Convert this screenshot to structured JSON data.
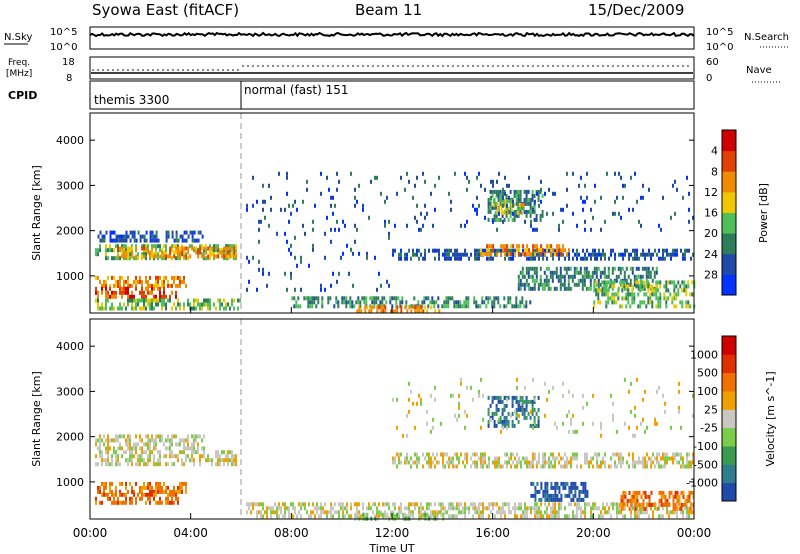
{
  "header": {
    "title": "Syowa East (fitACF)",
    "beam": "Beam 11",
    "date": "15/Dec/2009"
  },
  "status_panels": {
    "nsky": {
      "label": "N.Sky",
      "ticks_left": [
        "10^5",
        "10^0"
      ],
      "ticks_right": [
        "10^5",
        "10^0"
      ],
      "right_label": "N.Search"
    },
    "freq": {
      "label_line1": "Freq.",
      "label_line2": "[MHz]",
      "ticks_left": [
        "18",
        "8"
      ],
      "ticks_right": [
        "60",
        "0"
      ],
      "right_label": "Nave"
    },
    "cpid": {
      "label": "CPID",
      "segments": [
        {
          "name": "themis 3300",
          "start": 0,
          "end": 6
        },
        {
          "name": "normal (fast) 151",
          "start": 6,
          "end": 24
        }
      ]
    }
  },
  "chart_data": [
    {
      "type": "heatmap",
      "name": "power-panel",
      "ylabel": "Slant Range [km]",
      "xlabel": "Time UT",
      "ylim": [
        180,
        4600
      ],
      "xlim": [
        0,
        24
      ],
      "yticks": [
        "1000",
        "2000",
        "3000",
        "4000"
      ],
      "colorbar": {
        "label": "Power [dB]",
        "ticks": [
          "4",
          "8",
          "12",
          "16",
          "20",
          "24",
          "28"
        ],
        "colors": [
          "#0033ff",
          "#1f4aa8",
          "#2e7d5a",
          "#4fbf5a",
          "#f0c800",
          "#f08a00",
          "#e04000",
          "#d00000"
        ]
      },
      "regions": [
        {
          "t0": 0.2,
          "t1": 5.8,
          "r0": 1400,
          "r1": 1700,
          "level": 3
        },
        {
          "t0": 0.3,
          "t1": 4.5,
          "r0": 1750,
          "r1": 2000,
          "level": 1
        },
        {
          "t0": 0.2,
          "t1": 3.8,
          "r0": 800,
          "r1": 1000,
          "level": 5
        },
        {
          "t0": 0.2,
          "t1": 3.5,
          "r0": 560,
          "r1": 760,
          "level": 6
        },
        {
          "t0": 0.2,
          "t1": 6.0,
          "r0": 300,
          "r1": 500,
          "level": 3
        },
        {
          "t0": 1.0,
          "t1": 5.8,
          "r0": 1450,
          "r1": 1650,
          "level": 5
        },
        {
          "t0": 8.0,
          "t1": 17.5,
          "r0": 300,
          "r1": 550,
          "level": 2
        },
        {
          "t0": 10.5,
          "t1": 14.0,
          "r0": 200,
          "r1": 350,
          "level": 5
        },
        {
          "t0": 12.0,
          "t1": 24.0,
          "r0": 1350,
          "r1": 1600,
          "level": 1
        },
        {
          "t0": 15.5,
          "t1": 19.0,
          "r0": 1500,
          "r1": 1700,
          "level": 5
        },
        {
          "t0": 15.8,
          "t1": 18.0,
          "r0": 2200,
          "r1": 2900,
          "level": 2
        },
        {
          "t0": 16.0,
          "t1": 17.2,
          "r0": 2400,
          "r1": 2700,
          "level": 4
        },
        {
          "t0": 17.0,
          "t1": 22.5,
          "r0": 700,
          "r1": 1200,
          "level": 2
        },
        {
          "t0": 20.0,
          "t1": 24.0,
          "r0": 300,
          "r1": 900,
          "level": 3
        },
        {
          "t0": 6.2,
          "t1": 12.0,
          "r0": 700,
          "r1": 3300,
          "level": 1
        },
        {
          "t0": 12.0,
          "t1": 24.0,
          "r0": 2000,
          "r1": 3300,
          "level": 1
        }
      ]
    },
    {
      "type": "heatmap",
      "name": "velocity-panel",
      "ylabel": "Slant Range [km]",
      "xlabel": "Time UT",
      "ylim": [
        180,
        4600
      ],
      "xlim": [
        0,
        24
      ],
      "yticks": [
        "1000",
        "2000",
        "3000",
        "4000"
      ],
      "colorbar": {
        "label": "Velocity [m s^-1]",
        "ticks": [
          "1000",
          "500",
          "100",
          "25",
          "-25",
          "-100",
          "-500",
          "-1000"
        ],
        "colors": [
          "#1f4aa8",
          "#2e7d8a",
          "#3a9a50",
          "#7acc4a",
          "#c8c8c0",
          "#f0a000",
          "#f07000",
          "#e03000",
          "#d00000"
        ]
      },
      "regions": [
        {
          "t0": 0.2,
          "t1": 5.8,
          "r0": 1400,
          "r1": 1700,
          "level": 4
        },
        {
          "t0": 0.2,
          "t1": 3.8,
          "r0": 800,
          "r1": 1000,
          "level": 6
        },
        {
          "t0": 0.2,
          "t1": 3.5,
          "r0": 560,
          "r1": 760,
          "level": 6
        },
        {
          "t0": 0.2,
          "t1": 4.5,
          "r0": 1750,
          "r1": 2050,
          "level": 4
        },
        {
          "t0": 6.2,
          "t1": 24.0,
          "r0": 200,
          "r1": 550,
          "level": 4
        },
        {
          "t0": 10.5,
          "t1": 14.0,
          "r0": 200,
          "r1": 320,
          "level": 3
        },
        {
          "t0": 12.0,
          "t1": 24.0,
          "r0": 1350,
          "r1": 1650,
          "level": 4
        },
        {
          "t0": 15.8,
          "t1": 17.8,
          "r0": 2200,
          "r1": 2900,
          "level": 1
        },
        {
          "t0": 17.5,
          "t1": 19.8,
          "r0": 600,
          "r1": 1000,
          "level": 0
        },
        {
          "t0": 21.0,
          "t1": 24.0,
          "r0": 400,
          "r1": 800,
          "level": 6
        },
        {
          "t0": 12.0,
          "t1": 24.0,
          "r0": 2000,
          "r1": 3300,
          "level": 4
        }
      ]
    }
  ],
  "time_axis": {
    "label": "Time UT",
    "ticks": [
      "00:00",
      "04:00",
      "08:00",
      "12:00",
      "16:00",
      "20:00",
      "00:00"
    ]
  }
}
